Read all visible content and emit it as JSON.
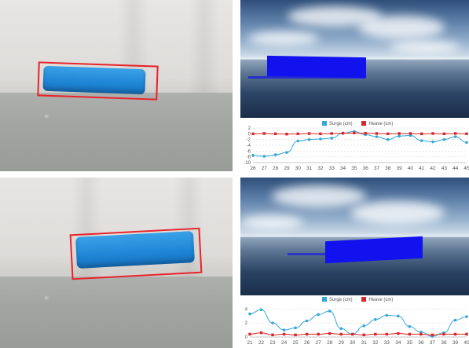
{
  "colors": {
    "surge": "#35a8d7",
    "heave": "#d9252c",
    "box": "#e8232b",
    "vessel": "#1212ee",
    "model": "#2a93df"
  },
  "chart_data": [
    {
      "type": "line",
      "x": [
        26,
        27,
        28,
        29,
        30,
        31,
        32,
        33,
        34,
        35,
        36,
        37,
        38,
        39,
        40,
        41,
        42,
        43,
        44,
        45
      ],
      "xticks": [
        "26",
        "27",
        "28",
        "29",
        "30",
        "31",
        "32",
        "33",
        "34",
        "35",
        "36",
        "37",
        "38",
        "39",
        "40",
        "41",
        "42",
        "43",
        "44",
        "45"
      ],
      "yticks": [
        "2",
        "0",
        "-2",
        "-4",
        "-6",
        "-8",
        "-10"
      ],
      "ylim": [
        -10,
        2
      ],
      "grid": true,
      "legend_position": "top-center",
      "series": [
        {
          "name": "Surge (cm)",
          "color": "#35a8d7",
          "values": [
            -7.5,
            -7.8,
            -7.3,
            -6.5,
            -2.5,
            -2.0,
            -1.8,
            -1.5,
            0.2,
            0.8,
            -0.3,
            -1.0,
            -2.0,
            -0.8,
            -0.6,
            -2.4,
            -2.8,
            -2.0,
            -1.0,
            -3.0
          ]
        },
        {
          "name": "Heave (cm)",
          "color": "#d9252c",
          "values": [
            0.0,
            0.1,
            0.0,
            -0.1,
            0.0,
            0.1,
            0.0,
            0.1,
            0.2,
            0.3,
            0.2,
            0.1,
            0.0,
            0.1,
            0.1,
            0.0,
            0.1,
            0.0,
            0.1,
            0.0
          ]
        }
      ]
    },
    {
      "type": "line",
      "x": [
        21,
        22,
        23,
        24,
        25,
        26,
        27,
        28,
        29,
        30,
        31,
        32,
        33,
        34,
        35,
        36,
        37,
        38,
        39,
        40
      ],
      "xticks": [
        "21",
        "22",
        "23",
        "24",
        "25",
        "26",
        "27",
        "28",
        "29",
        "30",
        "31",
        "32",
        "33",
        "34",
        "35",
        "36",
        "37",
        "38",
        "39",
        "40"
      ],
      "yticks": [
        "4",
        "2",
        "0"
      ],
      "ylim": [
        0,
        4.6
      ],
      "grid": true,
      "legend_position": "top-center",
      "series": [
        {
          "name": "Surge (cm)",
          "color": "#35a8d7",
          "values": [
            3.3,
            3.9,
            2.0,
            1.0,
            1.3,
            2.3,
            3.2,
            3.7,
            1.2,
            0.4,
            1.6,
            2.5,
            3.1,
            3.0,
            1.5,
            0.7,
            0.1,
            0.6,
            2.4,
            2.9
          ]
        },
        {
          "name": "Heave (cm)",
          "color": "#d9252c",
          "values": [
            0.4,
            0.6,
            0.3,
            0.4,
            0.3,
            0.4,
            0.4,
            0.5,
            0.4,
            0.4,
            0.3,
            0.4,
            0.4,
            0.5,
            0.4,
            0.4,
            0.3,
            0.4,
            0.4,
            0.4
          ]
        }
      ]
    }
  ]
}
